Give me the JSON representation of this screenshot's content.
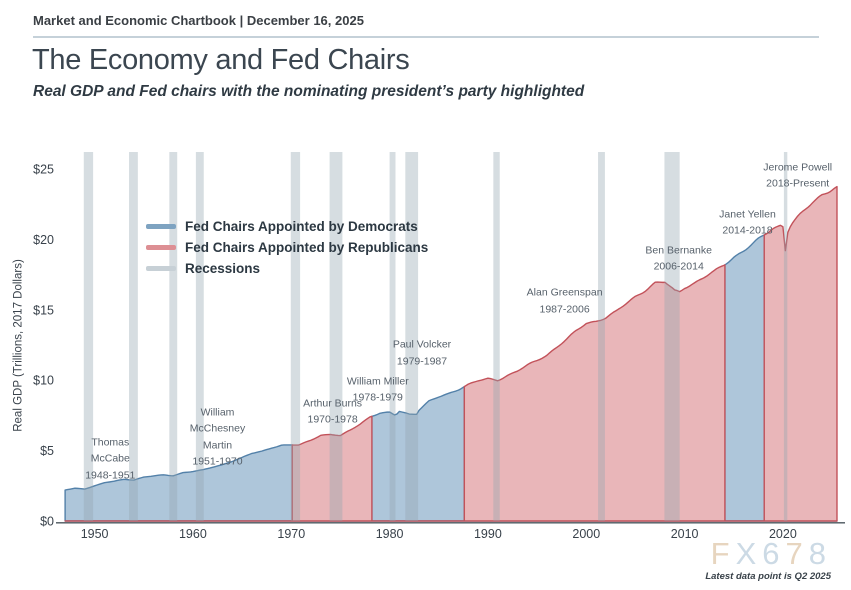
{
  "header": {
    "kicker": "Market and Economic Chartbook | December 16, 2025",
    "title": "The Economy and Fed Chairs",
    "subtitle": "Real GDP and Fed chairs with the nominating president’s party highlighted"
  },
  "chart_data": {
    "type": "area",
    "ylabel": "Real GDP (Trillions, 2017 Dollars)",
    "x_ticks": [
      1950,
      1960,
      1970,
      1980,
      1990,
      2000,
      2010,
      2020
    ],
    "y_ticks": [
      {
        "value": 0,
        "label": "$0"
      },
      {
        "value": 5,
        "label": "$5"
      },
      {
        "value": 10,
        "label": "$10"
      },
      {
        "value": 15,
        "label": "$15"
      },
      {
        "value": 20,
        "label": "$20"
      },
      {
        "value": 25,
        "label": "$25"
      }
    ],
    "x_range": [
      1947,
      2026.3
    ],
    "y_range": [
      0,
      26.2
    ],
    "series": {
      "name": "Real GDP (Trillions, 2017 Dollars)",
      "points": [
        [
          1947,
          2.2
        ],
        [
          1948,
          2.32
        ],
        [
          1949,
          2.28
        ],
        [
          1950,
          2.5
        ],
        [
          1951,
          2.72
        ],
        [
          1952,
          2.82
        ],
        [
          1953,
          2.96
        ],
        [
          1954,
          2.92
        ],
        [
          1955,
          3.12
        ],
        [
          1956,
          3.2
        ],
        [
          1957,
          3.27
        ],
        [
          1958,
          3.22
        ],
        [
          1959,
          3.44
        ],
        [
          1960,
          3.52
        ],
        [
          1961,
          3.62
        ],
        [
          1962,
          3.82
        ],
        [
          1963,
          4.0
        ],
        [
          1964,
          4.25
        ],
        [
          1965,
          4.5
        ],
        [
          1966,
          4.8
        ],
        [
          1967,
          4.95
        ],
        [
          1968,
          5.2
        ],
        [
          1969,
          5.38
        ],
        [
          1970,
          5.4
        ],
        [
          1970.9,
          5.38
        ],
        [
          1971,
          5.45
        ],
        [
          1972,
          5.75
        ],
        [
          1973,
          6.1
        ],
        [
          1974,
          6.15
        ],
        [
          1975,
          6.05
        ],
        [
          1976,
          6.45
        ],
        [
          1977,
          6.9
        ],
        [
          1978,
          7.4
        ],
        [
          1979,
          7.65
        ],
        [
          1980,
          7.7
        ],
        [
          1980.6,
          7.5
        ],
        [
          1981,
          7.8
        ],
        [
          1982,
          7.6
        ],
        [
          1982.9,
          7.62
        ],
        [
          1983,
          7.9
        ],
        [
          1984,
          8.5
        ],
        [
          1985,
          8.8
        ],
        [
          1986,
          9.05
        ],
        [
          1987,
          9.35
        ],
        [
          1988,
          9.7
        ],
        [
          1989,
          9.95
        ],
        [
          1990,
          10.1
        ],
        [
          1991,
          10.0
        ],
        [
          1992,
          10.35
        ],
        [
          1993,
          10.65
        ],
        [
          1994,
          11.05
        ],
        [
          1995,
          11.4
        ],
        [
          1996,
          11.8
        ],
        [
          1997,
          12.35
        ],
        [
          1998,
          12.9
        ],
        [
          1999,
          13.5
        ],
        [
          2000,
          14.05
        ],
        [
          2001,
          14.2
        ],
        [
          2002,
          14.45
        ],
        [
          2003,
          14.85
        ],
        [
          2004,
          15.4
        ],
        [
          2005,
          15.95
        ],
        [
          2006,
          16.4
        ],
        [
          2007,
          16.9
        ],
        [
          2008,
          16.95
        ],
        [
          2009,
          16.35
        ],
        [
          2009.5,
          16.3
        ],
        [
          2010,
          16.6
        ],
        [
          2011,
          16.9
        ],
        [
          2012,
          17.3
        ],
        [
          2013,
          17.7
        ],
        [
          2014,
          18.2
        ],
        [
          2015,
          18.75
        ],
        [
          2016,
          19.2
        ],
        [
          2017,
          19.7
        ],
        [
          2018,
          20.25
        ],
        [
          2019,
          20.8
        ],
        [
          2019.75,
          21.0
        ],
        [
          2020,
          20.9
        ],
        [
          2020.25,
          19.2
        ],
        [
          2020.5,
          20.5
        ],
        [
          2020.75,
          20.9
        ],
        [
          2021,
          21.2
        ],
        [
          2022,
          21.9
        ],
        [
          2023,
          22.6
        ],
        [
          2024,
          23.2
        ],
        [
          2025,
          23.6
        ],
        [
          2025.5,
          23.75
        ]
      ]
    },
    "party_segments": [
      {
        "party": "democrat",
        "start": 1947,
        "end": 1970.1
      },
      {
        "party": "republican",
        "start": 1970.1,
        "end": 1978.2
      },
      {
        "party": "democrat",
        "start": 1978.2,
        "end": 1987.6
      },
      {
        "party": "republican",
        "start": 1987.6,
        "end": 2014.1
      },
      {
        "party": "democrat",
        "start": 2014.1,
        "end": 2018.1
      },
      {
        "party": "republican",
        "start": 2018.1,
        "end": 2025.5
      }
    ],
    "recessions": [
      [
        1948.9,
        1949.85
      ],
      [
        1953.5,
        1954.4
      ],
      [
        1957.6,
        1958.4
      ],
      [
        1960.3,
        1961.1
      ],
      [
        1969.95,
        1970.9
      ],
      [
        1973.9,
        1975.2
      ],
      [
        1980.0,
        1980.6
      ],
      [
        1981.6,
        1982.9
      ],
      [
        1990.55,
        1991.2
      ],
      [
        2001.2,
        2001.9
      ],
      [
        2007.95,
        2009.5
      ],
      [
        2020.1,
        2020.45
      ]
    ],
    "chair_annotations": [
      {
        "lines": [
          "Thomas",
          "McCabe",
          "1948-1951"
        ],
        "year": 1951.6,
        "value": 4.4
      },
      {
        "lines": [
          "William",
          "McChesney",
          "Martin",
          "1951-1970"
        ],
        "year": 1962.5,
        "value": 5.95
      },
      {
        "lines": [
          "Arthur Burns",
          "1970-1978"
        ],
        "year": 1974.2,
        "value": 7.75
      },
      {
        "lines": [
          "William Miller",
          "1978-1979"
        ],
        "year": 1978.8,
        "value": 9.3
      },
      {
        "lines": [
          "Paul Volcker",
          "1979-1987"
        ],
        "year": 1983.3,
        "value": 11.9
      },
      {
        "lines": [
          "Alan Greenspan",
          "1987-2006"
        ],
        "year": 1997.8,
        "value": 15.6
      },
      {
        "lines": [
          "Ben Bernanke",
          "2006-2014"
        ],
        "year": 2009.4,
        "value": 18.6
      },
      {
        "lines": [
          "Janet Yellen",
          "2014-2018"
        ],
        "year": 2016.4,
        "value": 21.2
      },
      {
        "lines": [
          "Jerome Powell",
          "2018-Present"
        ],
        "year": 2021.5,
        "value": 24.5
      }
    ],
    "legend": [
      {
        "id": "democrats",
        "label": "Fed Chairs Appointed by Democrats",
        "color": "#7ea3c1"
      },
      {
        "id": "republicans",
        "label": "Fed Chairs Appointed by Republicans",
        "color": "#dd8f94"
      },
      {
        "id": "recessions",
        "label": "Recessions",
        "color": "#c7d0d6"
      }
    ],
    "colors": {
      "democrat_fill": "#aec6da",
      "democrat_line": "#5381a9",
      "republican_fill": "#e9b6b9",
      "republican_line": "#c2525a",
      "recession_band": "#93a5b1",
      "axis_line": "#4a545c",
      "tick_text": "#39424b",
      "annotation_text": "#57616b"
    },
    "grid": false,
    "legend_position": "upper-left"
  },
  "footer": {
    "watermark": {
      "text": "FX678",
      "letter_colors": [
        "#e7d5bf",
        "#ccdae5",
        "#ccdae5",
        "#e7d5bf",
        "#ccdae5"
      ]
    },
    "note": "Latest data point is Q2 2025"
  }
}
